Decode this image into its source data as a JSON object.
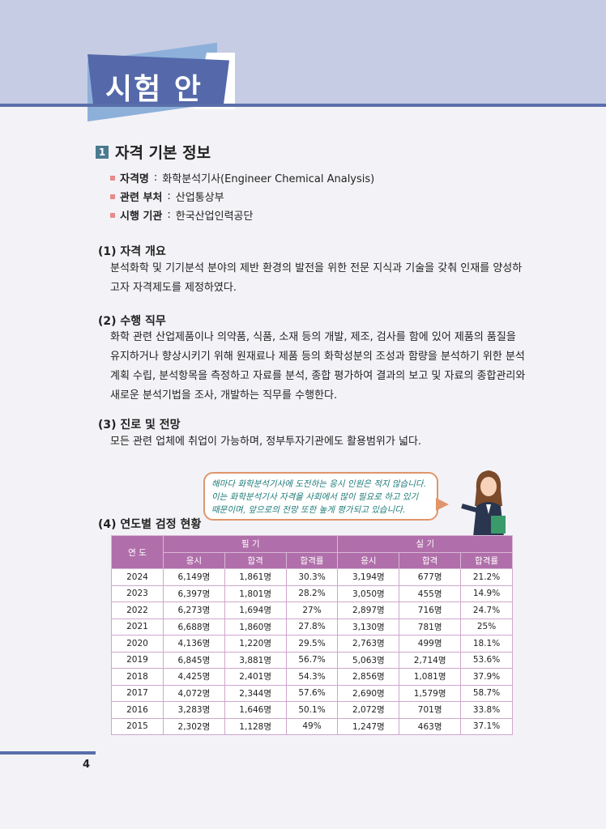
{
  "header": {
    "title": "시험 안내"
  },
  "section": {
    "number": "1",
    "title": "자격 기본 정보"
  },
  "info": [
    {
      "label": "자격명",
      "value": "화학분석기사(Engineer Chemical Analysis)"
    },
    {
      "label": "관련 부처",
      "value": "산업통상부"
    },
    {
      "label": "시행 기관",
      "value": "한국산업인력공단"
    }
  ],
  "subsections": [
    {
      "title": "(1) 자격 개요",
      "lines": [
        "분석화학 및 기기분석 분야의 제반 환경의 발전을 위한 전문 지식과 기술을 갖춰 인재를 양성하",
        "고자 자격제도를 제정하였다."
      ]
    },
    {
      "title": "(2) 수행 직무",
      "lines": [
        "화학 관련 산업제품이나 의약품, 식품, 소재 등의 개발, 제조, 검사를 함에 있어 제품의 품질을",
        "유지하거나 향상시키기 위해 원재료나 제품 등의 화학성분의 조성과 함량을 분석하기 위한 분석",
        "계획 수립, 분석항목을 측정하고 자료를 분석, 종합 평가하여 결과의 보고 및 자료의 종합관리와",
        "새로운 분석기법을 조사, 개발하는 직무를 수행한다."
      ]
    },
    {
      "title": "(3) 진로 및 전망",
      "lines": [
        "모든 관련 업체에 취업이 가능하며, 정부투자기관에도 활용범위가 넓다."
      ]
    },
    {
      "title": "(4) 연도별 검정 현황"
    }
  ],
  "bubble": {
    "lines": [
      "해마다 화학분석기사에 도전하는 응시 인원은 적지 않습니다.",
      "이는 화학분석기사 자격을 사회에서 많이 필요로 하고 있기",
      "때문이며, 앞으로의 전망 또한 높게 평가되고 있습니다."
    ]
  },
  "table": {
    "year_header": "연 도",
    "group_headers": [
      "필 기",
      "실 기"
    ],
    "sub_headers": [
      "응시",
      "합격",
      "합격률",
      "응시",
      "합격",
      "합격률"
    ],
    "rows": [
      [
        "2024",
        "6,149명",
        "1,861명",
        "30.3%",
        "3,194명",
        "677명",
        "21.2%"
      ],
      [
        "2023",
        "6,397명",
        "1,801명",
        "28.2%",
        "3,050명",
        "455명",
        "14.9%"
      ],
      [
        "2022",
        "6,273명",
        "1,694명",
        "27%",
        "2,897명",
        "716명",
        "24.7%"
      ],
      [
        "2021",
        "6,688명",
        "1,860명",
        "27.8%",
        "3,130명",
        "781명",
        "25%"
      ],
      [
        "2020",
        "4,136명",
        "1,220명",
        "29.5%",
        "2,763명",
        "499명",
        "18.1%"
      ],
      [
        "2019",
        "6,845명",
        "3,881명",
        "56.7%",
        "5,063명",
        "2,714명",
        "53.6%"
      ],
      [
        "2018",
        "4,425명",
        "2,401명",
        "54.3%",
        "2,856명",
        "1,081명",
        "37.9%"
      ],
      [
        "2017",
        "4,072명",
        "2,344명",
        "57.6%",
        "2,690명",
        "1,579명",
        "58.7%"
      ],
      [
        "2016",
        "3,283명",
        "1,646명",
        "50.1%",
        "2,072명",
        "701명",
        "33.8%"
      ],
      [
        "2015",
        "2,302명",
        "1,128명",
        "49%",
        "1,247명",
        "463명",
        "37.1%"
      ]
    ]
  },
  "page_number": "4",
  "colors": {
    "header_band": "#c5cce3",
    "accent": "#5468aa",
    "table_header": "#b06faa",
    "bubble_text": "#1d7a78"
  }
}
